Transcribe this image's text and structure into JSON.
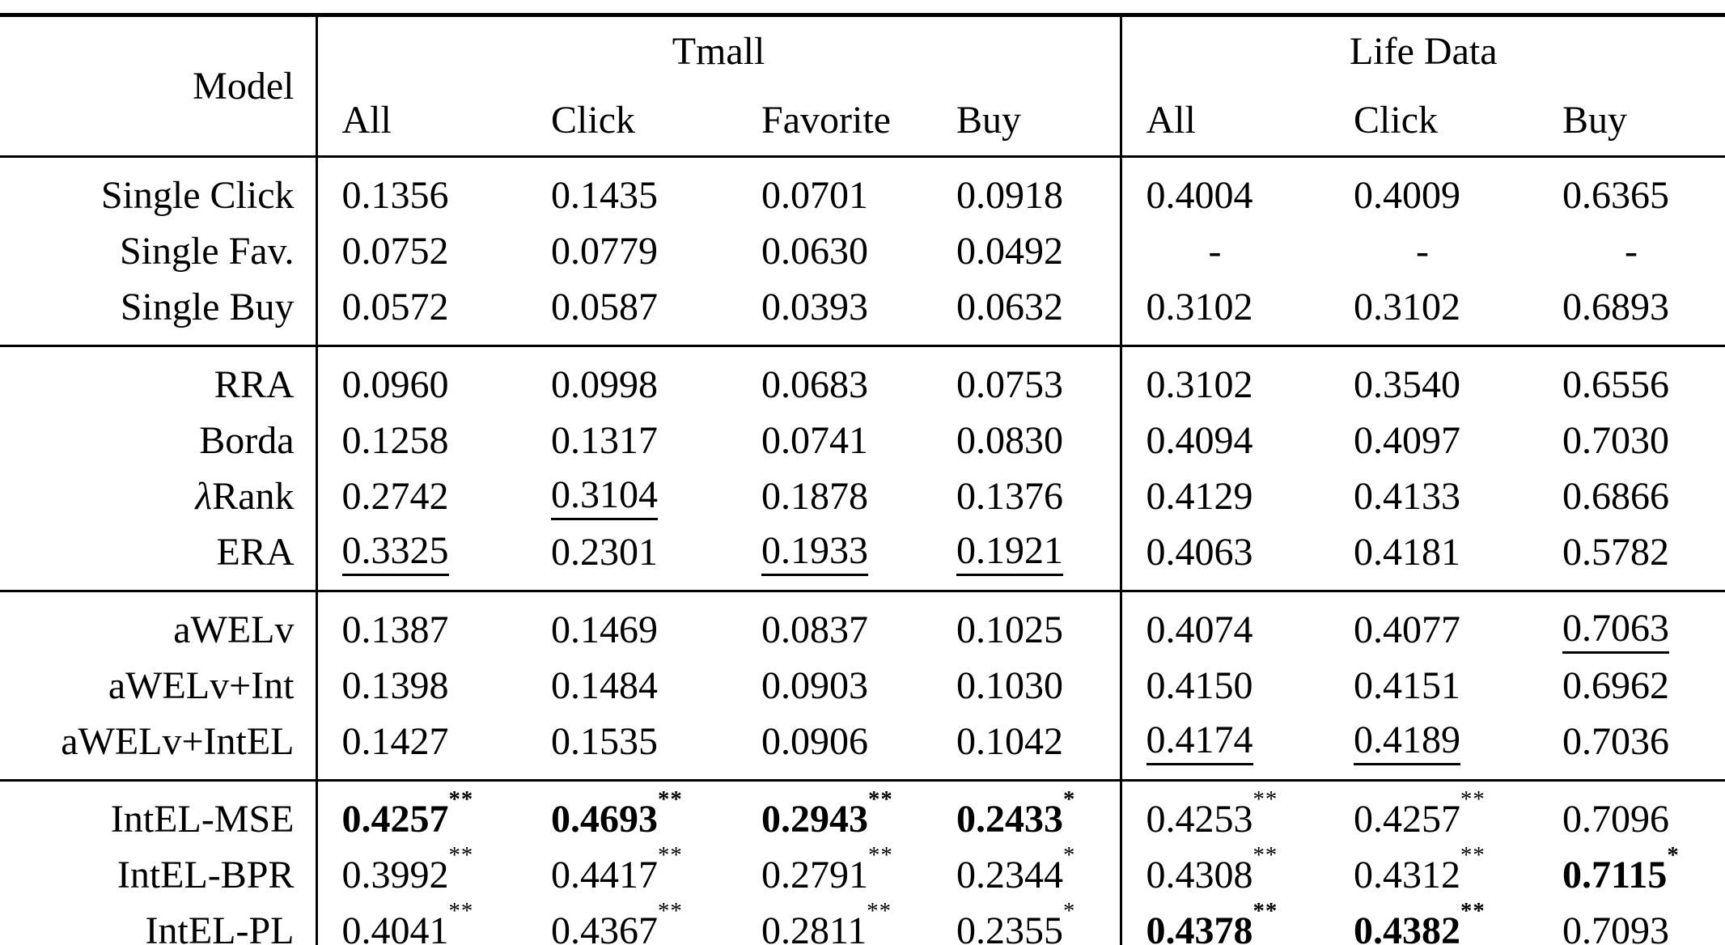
{
  "header": {
    "model_label": "Model",
    "groups": [
      {
        "label": "Tmall",
        "cols": [
          "All",
          "Click",
          "Favorite",
          "Buy"
        ]
      },
      {
        "label": "Life Data",
        "cols": [
          "All",
          "Click",
          "Buy"
        ]
      }
    ]
  },
  "blocks": [
    {
      "rows": [
        {
          "label": "Single Click",
          "cells": [
            {
              "v": "0.1356"
            },
            {
              "v": "0.1435"
            },
            {
              "v": "0.0701"
            },
            {
              "v": "0.0918"
            },
            {
              "v": "0.4004"
            },
            {
              "v": "0.4009"
            },
            {
              "v": "0.6365"
            }
          ]
        },
        {
          "label": "Single Fav.",
          "cells": [
            {
              "v": "0.0752"
            },
            {
              "v": "0.0779"
            },
            {
              "v": "0.0630"
            },
            {
              "v": "0.0492"
            },
            {
              "v": "-",
              "dash": true
            },
            {
              "v": "-",
              "dash": true
            },
            {
              "v": "-",
              "dash": true
            }
          ]
        },
        {
          "label": "Single Buy",
          "cells": [
            {
              "v": "0.0572"
            },
            {
              "v": "0.0587"
            },
            {
              "v": "0.0393"
            },
            {
              "v": "0.0632"
            },
            {
              "v": "0.3102"
            },
            {
              "v": "0.3102"
            },
            {
              "v": "0.6893"
            }
          ]
        }
      ]
    },
    {
      "rows": [
        {
          "label": "RRA",
          "cells": [
            {
              "v": "0.0960"
            },
            {
              "v": "0.0998"
            },
            {
              "v": "0.0683"
            },
            {
              "v": "0.0753"
            },
            {
              "v": "0.3102"
            },
            {
              "v": "0.3540"
            },
            {
              "v": "0.6556"
            }
          ]
        },
        {
          "label": "Borda",
          "cells": [
            {
              "v": "0.1258"
            },
            {
              "v": "0.1317"
            },
            {
              "v": "0.0741"
            },
            {
              "v": "0.0830"
            },
            {
              "v": "0.4094"
            },
            {
              "v": "0.4097"
            },
            {
              "v": "0.7030"
            }
          ]
        },
        {
          "label": "λRank",
          "cells": [
            {
              "v": "0.2742"
            },
            {
              "v": "0.3104",
              "u": true
            },
            {
              "v": "0.1878"
            },
            {
              "v": "0.1376"
            },
            {
              "v": "0.4129"
            },
            {
              "v": "0.4133"
            },
            {
              "v": "0.6866"
            }
          ]
        },
        {
          "label": "ERA",
          "cells": [
            {
              "v": "0.3325",
              "u": true
            },
            {
              "v": "0.2301"
            },
            {
              "v": "0.1933",
              "u": true
            },
            {
              "v": "0.1921",
              "u": true
            },
            {
              "v": "0.4063"
            },
            {
              "v": "0.4181"
            },
            {
              "v": "0.5782"
            }
          ]
        }
      ]
    },
    {
      "rows": [
        {
          "label": "aWELv",
          "cells": [
            {
              "v": "0.1387"
            },
            {
              "v": "0.1469"
            },
            {
              "v": "0.0837"
            },
            {
              "v": "0.1025"
            },
            {
              "v": "0.4074"
            },
            {
              "v": "0.4077"
            },
            {
              "v": "0.7063",
              "u": true
            }
          ]
        },
        {
          "label": "aWELv+Int",
          "cells": [
            {
              "v": "0.1398"
            },
            {
              "v": "0.1484"
            },
            {
              "v": "0.0903"
            },
            {
              "v": "0.1030"
            },
            {
              "v": "0.4150"
            },
            {
              "v": "0.4151"
            },
            {
              "v": "0.6962"
            }
          ]
        },
        {
          "label": "aWELv+IntEL",
          "cells": [
            {
              "v": "0.1427"
            },
            {
              "v": "0.1535"
            },
            {
              "v": "0.0906"
            },
            {
              "v": "0.1042"
            },
            {
              "v": "0.4174",
              "u": true
            },
            {
              "v": "0.4189",
              "u": true
            },
            {
              "v": "0.7036"
            }
          ]
        }
      ]
    },
    {
      "rows": [
        {
          "label": "IntEL-MSE",
          "cells": [
            {
              "v": "0.4257",
              "sup": "**",
              "b": true
            },
            {
              "v": "0.4693",
              "sup": "**",
              "b": true
            },
            {
              "v": "0.2943",
              "sup": "**",
              "b": true
            },
            {
              "v": "0.2433",
              "sup": "*",
              "b": true
            },
            {
              "v": "0.4253",
              "sup": "**"
            },
            {
              "v": "0.4257",
              "sup": "**"
            },
            {
              "v": "0.7096"
            }
          ]
        },
        {
          "label": "IntEL-BPR",
          "cells": [
            {
              "v": "0.3992",
              "sup": "**"
            },
            {
              "v": "0.4417",
              "sup": "**"
            },
            {
              "v": "0.2791",
              "sup": "**"
            },
            {
              "v": "0.2344",
              "sup": "*"
            },
            {
              "v": "0.4308",
              "sup": "**"
            },
            {
              "v": "0.4312",
              "sup": "**"
            },
            {
              "v": "0.7115",
              "sup": "*",
              "b": true
            }
          ]
        },
        {
          "label": "IntEL-PL",
          "cells": [
            {
              "v": "0.4041",
              "sup": "**"
            },
            {
              "v": "0.4367",
              "sup": "**"
            },
            {
              "v": "0.2811",
              "sup": "**"
            },
            {
              "v": "0.2355",
              "sup": "*"
            },
            {
              "v": "0.4378",
              "sup": "**",
              "b": true
            },
            {
              "v": "0.4382",
              "sup": "**",
              "b": true
            },
            {
              "v": "0.7093"
            }
          ]
        }
      ]
    }
  ]
}
